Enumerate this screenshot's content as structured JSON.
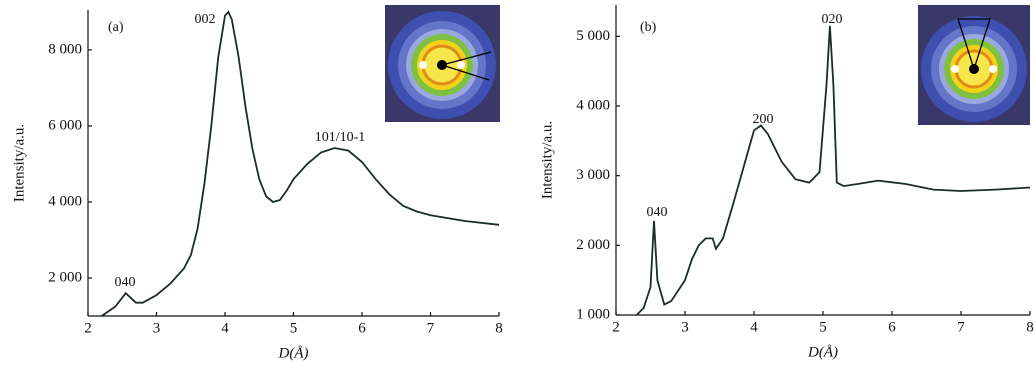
{
  "chart_data": [
    {
      "type": "line",
      "x_label": "D(Å)",
      "y_label": "Intensity/a.u.",
      "annotations": [
        "(a)",
        "002",
        "101/10-1",
        "040"
      ],
      "color": "#1c2b2b",
      "x": [
        2.2,
        2.4,
        2.55,
        2.7,
        2.8,
        3.0,
        3.2,
        3.4,
        3.5,
        3.6,
        3.7,
        3.8,
        3.9,
        4.0,
        4.05,
        4.1,
        4.2,
        4.3,
        4.4,
        4.5,
        4.6,
        4.7,
        4.8,
        4.9,
        5.0,
        5.2,
        5.4,
        5.6,
        5.8,
        6.0,
        6.2,
        6.4,
        6.6,
        6.8,
        7.0,
        7.5,
        8.0
      ],
      "values": [
        1000,
        1250,
        1600,
        1350,
        1350,
        1550,
        1850,
        2250,
        2600,
        3300,
        4500,
        6000,
        7800,
        8900,
        9000,
        8800,
        7800,
        6500,
        5400,
        4600,
        4150,
        4000,
        4050,
        4300,
        4600,
        5000,
        5300,
        5420,
        5350,
        5050,
        4600,
        4200,
        3900,
        3750,
        3650,
        3500,
        3400
      ],
      "xlim": [
        2,
        8
      ],
      "xticks": [
        2,
        3,
        4,
        5,
        6,
        7,
        8
      ],
      "ylim": [
        1000,
        9050
      ],
      "yticks": [
        {
          "value": 2000,
          "label": "2 000"
        },
        {
          "value": 4000,
          "label": "4 000"
        },
        {
          "value": 6000,
          "label": "6 000"
        },
        {
          "value": 8000,
          "label": "8 000"
        }
      ]
    },
    {
      "type": "line",
      "x_label": "D(Å)",
      "y_label": "Intensity/a.u.",
      "annotations": [
        "(b)",
        "020",
        "200",
        "040"
      ],
      "color": "#1c2b2b",
      "x": [
        2.3,
        2.4,
        2.5,
        2.55,
        2.6,
        2.7,
        2.8,
        3.0,
        3.1,
        3.2,
        3.3,
        3.4,
        3.45,
        3.55,
        3.7,
        3.9,
        4.0,
        4.1,
        4.2,
        4.4,
        4.6,
        4.8,
        4.95,
        5.05,
        5.1,
        5.15,
        5.2,
        5.3,
        5.5,
        5.8,
        6.2,
        6.6,
        7.0,
        7.5,
        8.0
      ],
      "values": [
        1000,
        1100,
        1400,
        2350,
        1500,
        1150,
        1200,
        1500,
        1800,
        2000,
        2100,
        2100,
        1950,
        2100,
        2600,
        3300,
        3650,
        3720,
        3600,
        3200,
        2950,
        2900,
        3050,
        4300,
        5150,
        4300,
        2900,
        2850,
        2880,
        2930,
        2880,
        2800,
        2780,
        2800,
        2830
      ],
      "xlim": [
        2,
        8
      ],
      "xticks": [
        2,
        3,
        4,
        5,
        6,
        7,
        8
      ],
      "ylim": [
        1000,
        5450
      ],
      "yticks": [
        {
          "value": 1000,
          "label": "1 000"
        },
        {
          "value": 2000,
          "label": "2 000"
        },
        {
          "value": 3000,
          "label": "3 000"
        },
        {
          "value": 4000,
          "label": "4 000"
        },
        {
          "value": 5000,
          "label": "5 000"
        }
      ]
    }
  ]
}
